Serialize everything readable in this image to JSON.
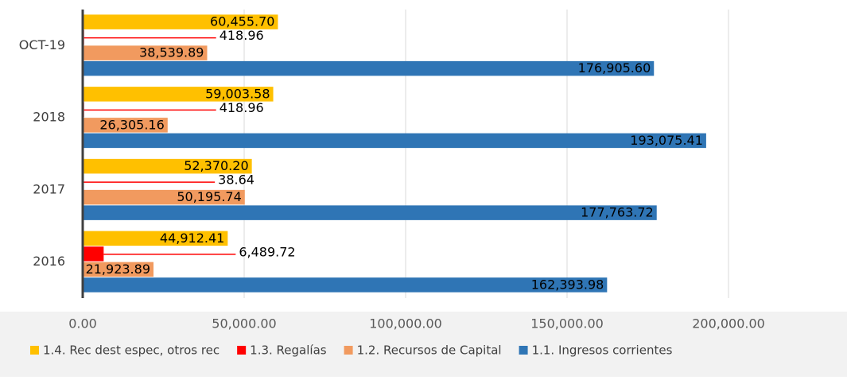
{
  "chart_data": {
    "type": "hbar",
    "categories": [
      "2016",
      "2017",
      "2018",
      "OCT-19"
    ],
    "series": [
      {
        "name": "1.4.  Rec dest espec, otros rec",
        "color": "#ffc000",
        "values": [
          44912.41,
          52370.2,
          59003.58,
          60455.7
        ],
        "value_labels": [
          "44,912.41",
          "52,370.20",
          "59,003.58",
          "60,455.70"
        ]
      },
      {
        "name": "1.3. Regalías",
        "color": "#ff0000",
        "values": [
          6489.72,
          38.64,
          418.96,
          418.96
        ],
        "value_labels": [
          "6,489.72",
          "38.64",
          "418.96",
          "418.96"
        ]
      },
      {
        "name": "1.2. Recursos de Capital",
        "color": "#f19a5f",
        "values": [
          21923.89,
          50195.74,
          26305.16,
          38539.89
        ],
        "value_labels": [
          "21,923.89",
          "50,195.74",
          "26,305.16",
          "38,539.89"
        ]
      },
      {
        "name": "1.1. Ingresos corrientes",
        "color": "#2f75b5",
        "values": [
          162393.98,
          177763.72,
          193075.41,
          176905.6
        ],
        "value_labels": [
          "162,393.98",
          "177,763.72",
          "193,075.41",
          "176,905.60"
        ]
      }
    ],
    "xlim": [
      0,
      233000
    ],
    "xticks": [
      {
        "value": 0,
        "label": "0.00"
      },
      {
        "value": 50000,
        "label": "50,000.00"
      },
      {
        "value": 100000,
        "label": "100,000.00"
      },
      {
        "value": 150000,
        "label": "150,000.00"
      },
      {
        "value": 200000,
        "label": "200,000.00"
      }
    ],
    "grid": true,
    "legend": "bottom"
  }
}
